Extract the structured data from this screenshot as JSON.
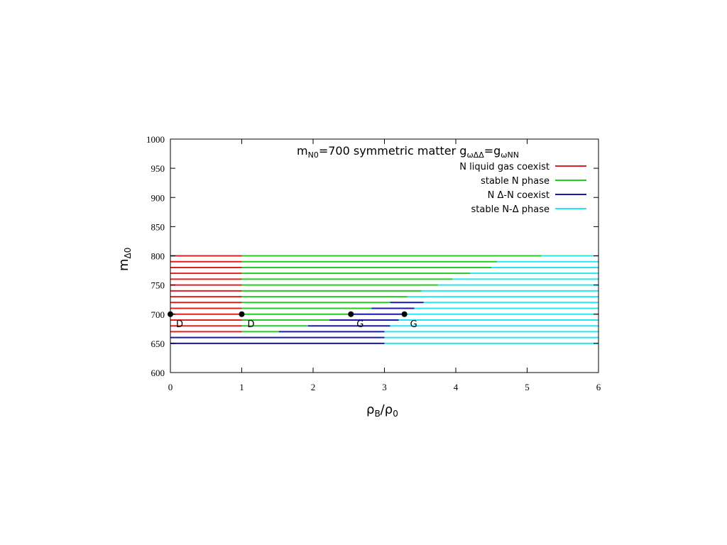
{
  "chart_data": {
    "type": "line",
    "title": {
      "m": "m",
      "m_sub": "N0",
      "middle": "=700 symmetric matter g",
      "g1_sub": "ωΔΔ",
      "eq": "=g",
      "g2_sub": "ωNN"
    },
    "xlabel": {
      "a": "ρ",
      "a_sub": "B",
      "slash": "/",
      "b": "ρ",
      "b_sub": "0"
    },
    "ylabel": {
      "m": "m",
      "m_sub": "Δ0"
    },
    "xlim": [
      0,
      6
    ],
    "ylim": [
      600,
      1000
    ],
    "xticks": [
      "0",
      "1",
      "2",
      "3",
      "4",
      "5",
      "6"
    ],
    "yticks": [
      "600",
      "650",
      "700",
      "750",
      "800",
      "850",
      "900",
      "950",
      "1000"
    ],
    "legend_position": "top-right",
    "series": [
      {
        "name": "N liquid gas coexist",
        "color": "#e02020",
        "segments": [
          [
            800,
            0,
            1
          ],
          [
            790,
            0,
            1
          ],
          [
            780,
            0,
            1
          ],
          [
            770,
            0,
            1
          ],
          [
            760,
            0,
            1
          ],
          [
            750,
            0,
            1
          ],
          [
            740,
            0,
            1
          ],
          [
            730,
            0,
            1
          ],
          [
            720,
            0,
            1
          ],
          [
            710,
            0,
            1
          ],
          [
            700,
            0,
            1
          ],
          [
            690,
            0,
            1
          ],
          [
            680,
            0,
            1
          ],
          [
            670,
            0,
            1
          ]
        ]
      },
      {
        "name": "stable N phase",
        "color": "#22cc22",
        "segments": [
          [
            800,
            1,
            5.2
          ],
          [
            790,
            1,
            4.58
          ],
          [
            780,
            1,
            4.5
          ],
          [
            770,
            1,
            4.2
          ],
          [
            760,
            1,
            3.95
          ],
          [
            750,
            1,
            3.75
          ],
          [
            740,
            1,
            3.52
          ],
          [
            730,
            1,
            3.32
          ],
          [
            720,
            1,
            3.08
          ],
          [
            710,
            1,
            2.82
          ],
          [
            700,
            1,
            2.53
          ],
          [
            690,
            1,
            2.23
          ],
          [
            680,
            1,
            1.93
          ],
          [
            670,
            1,
            1.52
          ]
        ]
      },
      {
        "name": "N Δ-N coexist",
        "color": "#1a1aaa",
        "segments": [
          [
            720,
            3.08,
            3.55
          ],
          [
            710,
            2.82,
            3.42
          ],
          [
            700,
            2.53,
            3.28
          ],
          [
            690,
            2.23,
            3.2
          ],
          [
            680,
            1.93,
            3.08
          ],
          [
            670,
            1.52,
            3.0
          ],
          [
            660,
            0,
            3.0
          ],
          [
            650,
            0,
            3.0
          ]
        ]
      },
      {
        "name": "stable N-Δ phase",
        "color": "#22e8f0",
        "segments": [
          [
            800,
            5.2,
            6
          ],
          [
            790,
            4.58,
            6
          ],
          [
            780,
            4.5,
            6
          ],
          [
            770,
            4.2,
            6
          ],
          [
            760,
            3.95,
            6
          ],
          [
            750,
            3.75,
            6
          ],
          [
            740,
            3.52,
            6
          ],
          [
            730,
            3.32,
            6
          ],
          [
            720,
            3.55,
            6
          ],
          [
            710,
            3.42,
            6
          ],
          [
            700,
            3.28,
            6
          ],
          [
            690,
            3.2,
            6
          ],
          [
            680,
            3.08,
            6
          ],
          [
            670,
            3.0,
            6
          ],
          [
            660,
            3.0,
            6
          ],
          [
            650,
            3.0,
            6
          ]
        ]
      }
    ],
    "points": [
      {
        "x": 0,
        "y": 700,
        "label": "D"
      },
      {
        "x": 1,
        "y": 700,
        "label": "D"
      },
      {
        "x": 2.53,
        "y": 700,
        "label": "G"
      },
      {
        "x": 3.28,
        "y": 700,
        "label": "G"
      }
    ]
  }
}
